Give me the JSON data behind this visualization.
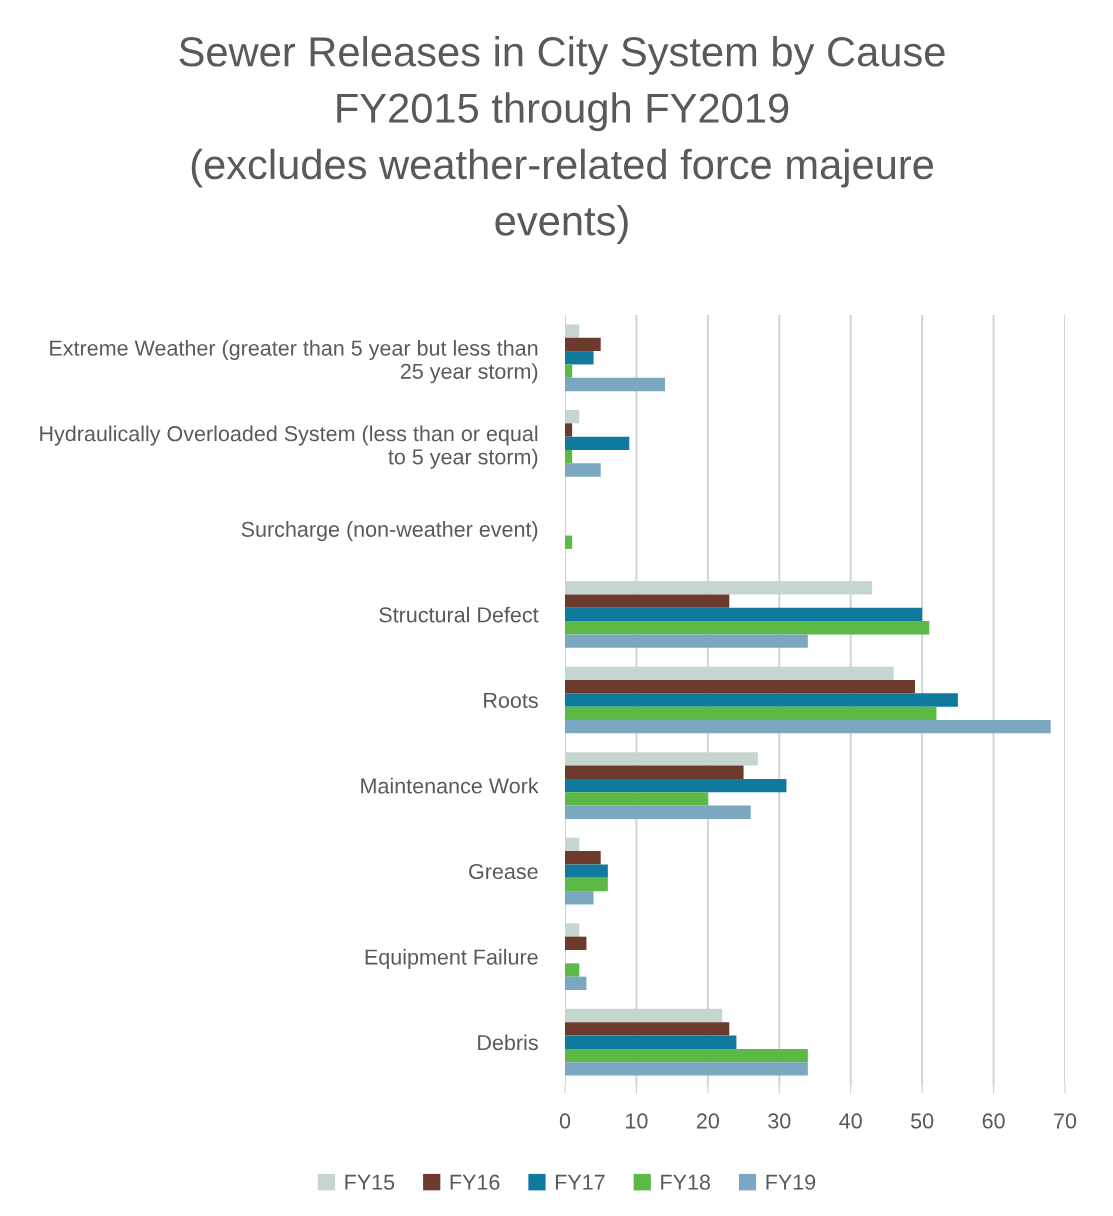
{
  "chart_data": {
    "type": "bar",
    "orientation": "horizontal",
    "title": "Sewer Releases in City System by Cause\nFY2015 through FY2019\n(excludes weather-related force majeure events)",
    "categories": [
      "Extreme Weather (greater than 5 year but less than 25 year storm)",
      "Hydraulically Overloaded System (less than or equal to 5 year storm)",
      "Surcharge (non-weather event)",
      "Structural Defect",
      "Roots",
      "Maintenance Work",
      "Grease",
      "Equipment Failure",
      "Debris"
    ],
    "series": [
      {
        "name": "FY15",
        "color": "#c4d6ce",
        "values": [
          2,
          2,
          0,
          43,
          46,
          27,
          2,
          2,
          22
        ]
      },
      {
        "name": "FY16",
        "color": "#6d3a2e",
        "values": [
          5,
          1,
          0,
          23,
          49,
          25,
          5,
          3,
          23
        ]
      },
      {
        "name": "FY17",
        "color": "#0f7a9e",
        "values": [
          4,
          9,
          0,
          50,
          55,
          31,
          6,
          0,
          24
        ]
      },
      {
        "name": "FY18",
        "color": "#5cb946",
        "values": [
          1,
          1,
          1,
          51,
          52,
          20,
          6,
          2,
          34
        ]
      },
      {
        "name": "FY19",
        "color": "#7ba7c0",
        "values": [
          14,
          5,
          0,
          34,
          68,
          26,
          4,
          3,
          34
        ]
      }
    ],
    "xlim": [
      0,
      70
    ],
    "xticks": [
      0,
      10,
      20,
      30,
      40,
      50,
      60,
      70
    ],
    "grid": "x",
    "legend": "bottom"
  }
}
